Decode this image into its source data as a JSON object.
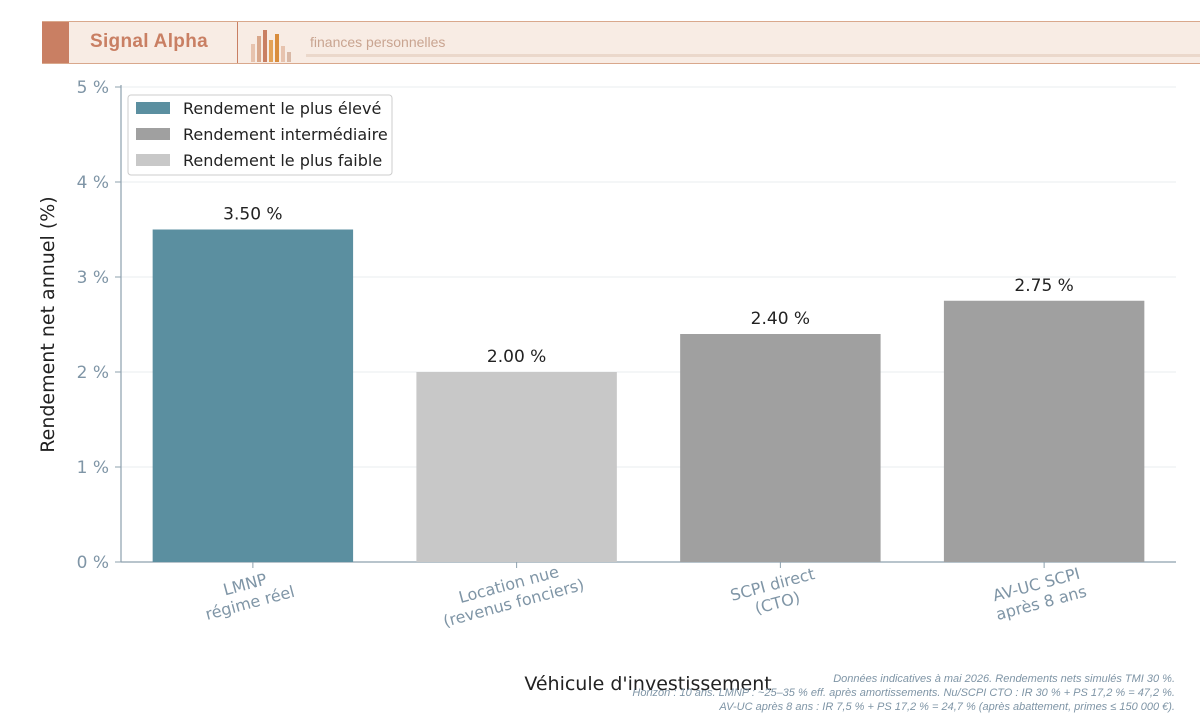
{
  "header": {
    "brand": "Signal Alpha",
    "tagline": "finances personnelles",
    "accent_color": "#c97f63"
  },
  "chart_data": {
    "type": "bar",
    "categories": [
      [
        "LMNP",
        "régime réel"
      ],
      [
        "Location nue",
        "(revenus fonciers)"
      ],
      [
        "SCPI direct",
        "(CTO)"
      ],
      [
        "AV-UC SCPI",
        "après 8 ans"
      ]
    ],
    "values": [
      3.5,
      2.0,
      2.4,
      2.75
    ],
    "value_labels": [
      "3.50 %",
      "2.00 %",
      "2.40 %",
      "2.75 %"
    ],
    "bar_colors": [
      "#5b8fa0",
      "#c8c8c8",
      "#a0a0a0",
      "#a0a0a0"
    ],
    "xlabel": "Véhicule d'investissement",
    "ylabel": "Rendement net annuel (%)",
    "ylim": [
      0,
      5
    ],
    "yticks": [
      0,
      1,
      2,
      3,
      4,
      5
    ],
    "ytick_labels": [
      "0 %",
      "1 %",
      "2 %",
      "3 %",
      "4 %",
      "5 %"
    ],
    "grid": true,
    "legend": {
      "placement": "top-left",
      "entries": [
        {
          "label": "Rendement le plus élevé",
          "color": "#5b8fa0"
        },
        {
          "label": "Rendement intermédiaire",
          "color": "#a0a0a0"
        },
        {
          "label": "Rendement le plus faible",
          "color": "#c8c8c8"
        }
      ]
    }
  },
  "footnote": [
    "Données indicatives à mai 2026. Rendements nets simulés TMI 30 %.",
    "Horizon : 10 ans. LMNP : ~25–35 % eff. après amortissements. Nu/SCPI CTO : IR 30 % + PS 17,2 % = 47,2 %.",
    "AV-UC après 8 ans : IR 7,5 % + PS 17,2 % = 24,7 % (après abattement, primes ≤ 150 000 €)."
  ]
}
